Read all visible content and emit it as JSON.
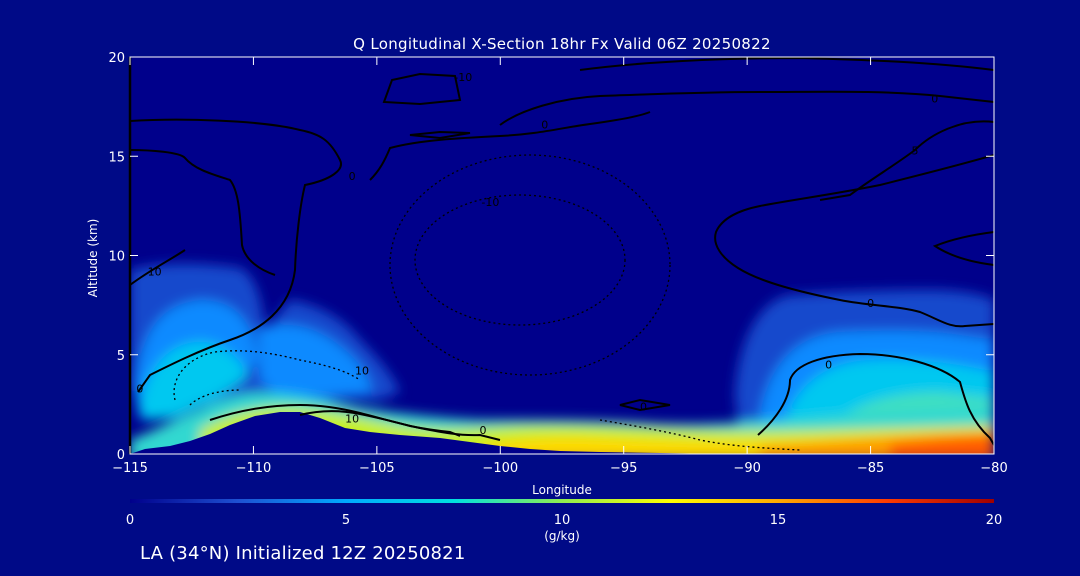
{
  "chart_data": {
    "type": "heatmap",
    "title": "Q Longitudinal X-Section 18hr  Fx Valid 06Z 20250822",
    "xlabel": "Longitude",
    "ylabel": "Altitude (km)",
    "xlim": [
      -115,
      -80
    ],
    "ylim": [
      0,
      20
    ],
    "x_ticks": [
      -115,
      -110,
      -105,
      -100,
      -95,
      -90,
      -85,
      -80
    ],
    "x_tick_labels": [
      "−115",
      "−110",
      "−105",
      "−100",
      "−95",
      "−90",
      "−85",
      "−80"
    ],
    "y_ticks": [
      0,
      5,
      10,
      15,
      20
    ],
    "y_tick_labels": [
      "0",
      "5",
      "10",
      "15",
      "20"
    ],
    "colorbar": {
      "label": "(g/kg)",
      "range": [
        0,
        20
      ],
      "ticks": [
        0,
        5,
        10,
        15,
        20
      ],
      "tick_labels": [
        "0",
        "5",
        "10",
        "15",
        "20"
      ],
      "colors": [
        "#00008b",
        "#1e50d2",
        "#00aaff",
        "#00e0e0",
        "#90ee50",
        "#ffff00",
        "#ffaa00",
        "#ff3c00",
        "#a00000"
      ]
    },
    "contour_labels": [
      {
        "lon": -101.5,
        "alt": 19.0,
        "text": "-10"
      },
      {
        "lon": -98.2,
        "alt": 16.6,
        "text": "0"
      },
      {
        "lon": -82.4,
        "alt": 17.9,
        "text": "0"
      },
      {
        "lon": -83.2,
        "alt": 15.3,
        "text": "5"
      },
      {
        "lon": -106.0,
        "alt": 14.0,
        "text": "0"
      },
      {
        "lon": -114.0,
        "alt": 9.2,
        "text": "10"
      },
      {
        "lon": -100.4,
        "alt": 12.7,
        "text": "-10"
      },
      {
        "lon": -85.0,
        "alt": 7.6,
        "text": "0"
      },
      {
        "lon": -86.7,
        "alt": 4.5,
        "text": "0"
      },
      {
        "lon": -105.6,
        "alt": 4.2,
        "text": "10"
      },
      {
        "lon": -114.6,
        "alt": 3.3,
        "text": "0"
      },
      {
        "lon": -106.0,
        "alt": 1.8,
        "text": "10"
      },
      {
        "lon": -100.7,
        "alt": 1.2,
        "text": "0"
      },
      {
        "lon": -94.2,
        "alt": 2.4,
        "text": "0"
      }
    ]
  },
  "footer": "LA (34°N) Initialized 12Z 20250821"
}
